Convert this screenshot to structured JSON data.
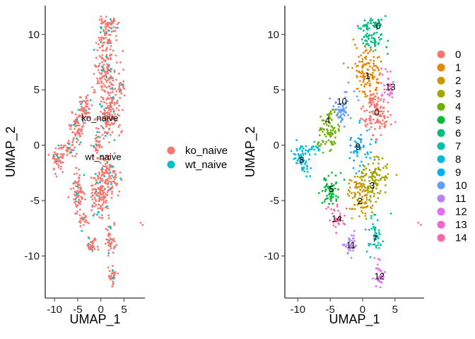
{
  "chart_data": [
    {
      "type": "scatter",
      "xlabel": "UMAP_1",
      "ylabel": "UMAP_2",
      "xlim": [
        -12,
        9.5
      ],
      "ylim": [
        -13.8,
        12.6
      ],
      "xticks": [
        -10,
        -5,
        0,
        5
      ],
      "yticks": [
        -10,
        -5,
        0,
        5,
        10
      ],
      "grid": false,
      "legend_position": "right",
      "series": [
        {
          "name": "ko_naive",
          "color": "#F8766D"
        },
        {
          "name": "wt_naive",
          "color": "#00BFC4"
        }
      ],
      "annotations": [
        {
          "text": "ko_naive",
          "x": -0.2,
          "y": 2.5
        },
        {
          "text": "wt_naive",
          "x": 0.5,
          "y": -1.0
        }
      ]
    },
    {
      "type": "scatter",
      "xlabel": "UMAP_1",
      "ylabel": "UMAP_2",
      "xlim": [
        -12,
        9.5
      ],
      "ylim": [
        -13.8,
        12.6
      ],
      "xticks": [
        -10,
        -5,
        0,
        5
      ],
      "yticks": [
        -10,
        -5,
        0,
        5,
        10
      ],
      "grid": false,
      "legend_position": "right",
      "series": [
        {
          "name": "0",
          "color": "#F8766D"
        },
        {
          "name": "1",
          "color": "#E58700"
        },
        {
          "name": "2",
          "color": "#C99800"
        },
        {
          "name": "3",
          "color": "#A3A500"
        },
        {
          "name": "4",
          "color": "#6BB100"
        },
        {
          "name": "5",
          "color": "#00BA38"
        },
        {
          "name": "6",
          "color": "#00BF7D"
        },
        {
          "name": "7",
          "color": "#00C0AF"
        },
        {
          "name": "8",
          "color": "#00BCD8"
        },
        {
          "name": "9",
          "color": "#00B0F6"
        },
        {
          "name": "10",
          "color": "#619CFF"
        },
        {
          "name": "11",
          "color": "#B983FF"
        },
        {
          "name": "12",
          "color": "#E76BF3"
        },
        {
          "name": "13",
          "color": "#FD61D1"
        },
        {
          "name": "14",
          "color": "#FF67A4"
        }
      ],
      "annotations": [
        {
          "text": "0",
          "x": 2.2,
          "y": 3.0
        },
        {
          "text": "1",
          "x": 0.8,
          "y": 6.3
        },
        {
          "text": "2",
          "x": -0.4,
          "y": -5.0
        },
        {
          "text": "3",
          "x": 1.5,
          "y": -3.6
        },
        {
          "text": "4",
          "x": -5.4,
          "y": 2.3
        },
        {
          "text": "5",
          "x": -4.8,
          "y": -3.9
        },
        {
          "text": "6",
          "x": 2.4,
          "y": 10.8
        },
        {
          "text": "7",
          "x": 1.9,
          "y": -8.4
        },
        {
          "text": "8",
          "x": -9.4,
          "y": -1.3
        },
        {
          "text": "9",
          "x": -0.7,
          "y": -0.1
        },
        {
          "text": "10",
          "x": -3.2,
          "y": 4.0
        },
        {
          "text": "11",
          "x": -1.8,
          "y": -9.0
        },
        {
          "text": "12",
          "x": 2.6,
          "y": -11.8
        },
        {
          "text": "13",
          "x": 4.3,
          "y": 5.3
        },
        {
          "text": "14",
          "x": -4.0,
          "y": -6.6
        }
      ]
    }
  ]
}
